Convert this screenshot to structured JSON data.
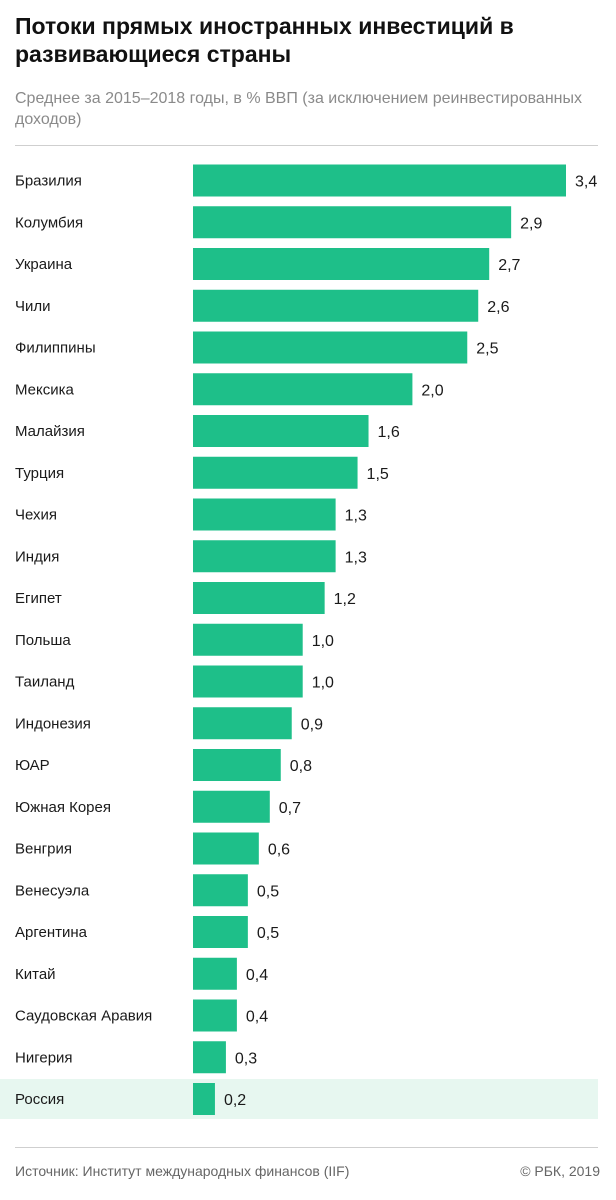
{
  "header": {
    "title": "Потоки прямых иностранных инвестиций в развивающиеся страны",
    "subtitle": "Среднее за 2015–2018 годы, в % ВВП (за исключением реинвестированных доходов)"
  },
  "footer": {
    "source": "Источник: Институт международных финансов (IIF)",
    "copyright": "© РБК, 2019"
  },
  "colors": {
    "bar": "#1ebf89",
    "highlight_row": "#e7f7f0"
  },
  "chart_data": {
    "type": "bar",
    "orientation": "horizontal",
    "title": "Потоки прямых иностранных инвестиций в развивающиеся страны",
    "subtitle": "Среднее за 2015–2018 годы, в % ВВП (за исключением реинвестированных доходов)",
    "xlabel": "",
    "ylabel": "",
    "xlim": [
      0,
      3.4
    ],
    "grid": false,
    "legend": "none",
    "highlighted_category": "Россия",
    "categories": [
      "Бразилия",
      "Колумбия",
      "Украина",
      "Чили",
      "Филиппины",
      "Мексика",
      "Малайзия",
      "Турция",
      "Чехия",
      "Индия",
      "Египет",
      "Польша",
      "Таиланд",
      "Индонезия",
      "ЮАР",
      "Южная Корея",
      "Венгрия",
      "Венесуэла",
      "Аргентина",
      "Китай",
      "Саудовская Аравия",
      "Нигерия",
      "Россия"
    ],
    "values": [
      3.4,
      2.9,
      2.7,
      2.6,
      2.5,
      2.0,
      1.6,
      1.5,
      1.3,
      1.3,
      1.2,
      1.0,
      1.0,
      0.9,
      0.8,
      0.7,
      0.6,
      0.5,
      0.5,
      0.4,
      0.4,
      0.3,
      0.2
    ],
    "value_labels": [
      "3,4",
      "2,9",
      "2,7",
      "2,6",
      "2,5",
      "2,0",
      "1,6",
      "1,5",
      "1,3",
      "1,3",
      "1,2",
      "1,0",
      "1,0",
      "0,9",
      "0,8",
      "0,7",
      "0,6",
      "0,5",
      "0,5",
      "0,4",
      "0,4",
      "0,3",
      "0,2"
    ]
  }
}
